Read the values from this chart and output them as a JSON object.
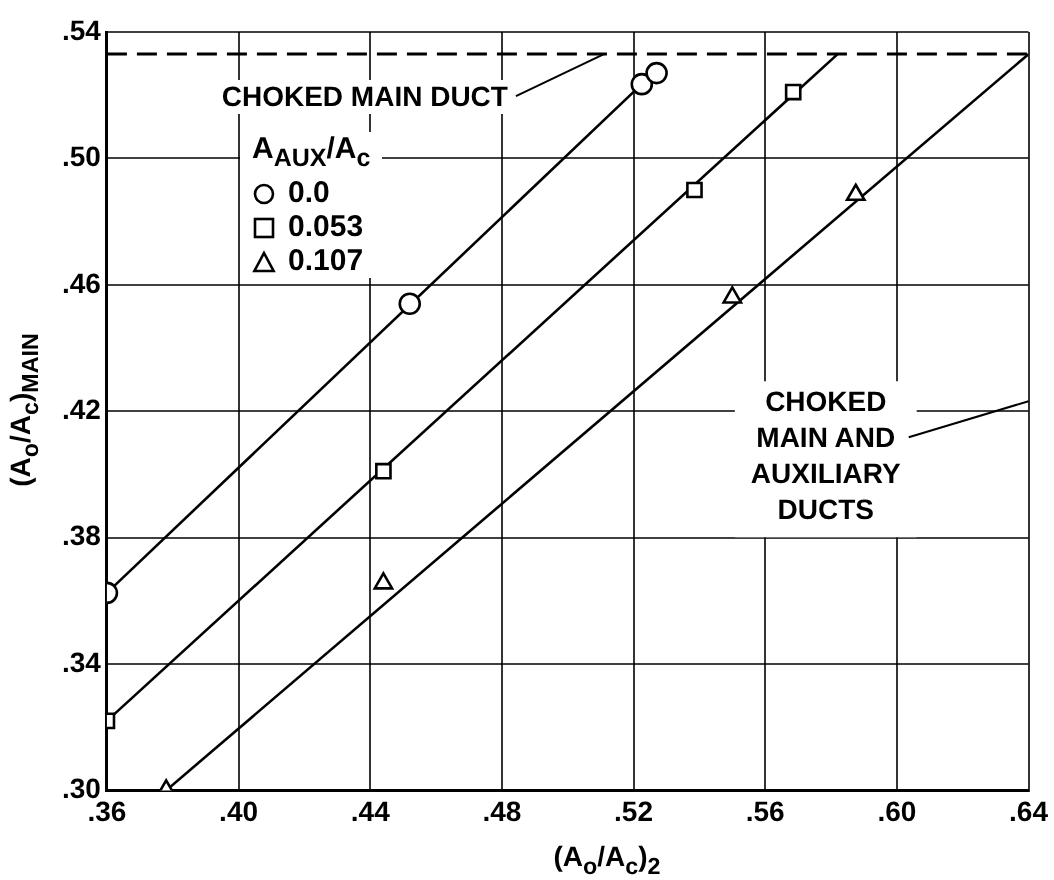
{
  "chart_data": {
    "type": "scatter",
    "xlabel": "(A$_{o}$/A$_{c}$)$_{2}$",
    "ylabel": "(A$_{o}$/A$_{c}$)$_{MAIN}$",
    "legend_title": "A$_{AUX}$/A$_{c}$",
    "legend": "top left",
    "grid": true,
    "xlim": [
      0.36,
      0.64
    ],
    "xticks": [
      {
        "value": 0.36,
        "label": ".36"
      },
      {
        "value": 0.4,
        "label": ".40"
      },
      {
        "value": 0.44,
        "label": ".44"
      },
      {
        "value": 0.48,
        "label": ".48"
      },
      {
        "value": 0.52,
        "label": ".52"
      },
      {
        "value": 0.56,
        "label": ".56"
      },
      {
        "value": 0.6,
        "label": ".60"
      },
      {
        "value": 0.64,
        "label": ".64"
      }
    ],
    "ylim": [
      0.3,
      0.54
    ],
    "yticks": [
      {
        "value": 0.3,
        "label": ".30"
      },
      {
        "value": 0.34,
        "label": ".34"
      },
      {
        "value": 0.38,
        "label": ".38"
      },
      {
        "value": 0.42,
        "label": ".42"
      },
      {
        "value": 0.46,
        "label": ".46"
      },
      {
        "value": 0.5,
        "label": ".50"
      },
      {
        "value": 0.54,
        "label": ".54"
      }
    ],
    "series": [
      {
        "name": "0.0",
        "marker": "circle",
        "color": "#000000",
        "x": [
          0.36,
          0.452,
          0.5225,
          0.527
        ],
        "values": [
          0.3625,
          0.454,
          0.5235,
          0.527
        ]
      },
      {
        "name": "0.053",
        "marker": "square",
        "color": "#000000",
        "x": [
          0.36,
          0.444,
          0.5385,
          0.5685
        ],
        "values": [
          0.322,
          0.401,
          0.49,
          0.521
        ]
      },
      {
        "name": "0.107",
        "marker": "triangle",
        "color": "#000000",
        "x": [
          0.378,
          0.444,
          0.55,
          0.5875
        ],
        "values": [
          0.3,
          0.3655,
          0.456,
          0.4885
        ]
      },
      {
        "type": "line",
        "color": "#000000",
        "x": [
          0.36,
          0.5225
        ],
        "values": [
          0.3625,
          0.5235
        ]
      },
      {
        "type": "line",
        "color": "#000000",
        "x": [
          0.36,
          0.582
        ],
        "values": [
          0.322,
          0.533
        ]
      },
      {
        "type": "line",
        "color": "#000000",
        "x": [
          0.378,
          0.64
        ],
        "values": [
          0.3,
          0.533
        ]
      }
    ],
    "ref_lines": [
      {
        "axis": "y",
        "value": 0.533,
        "line_style": "dashed",
        "color": "#000000"
      }
    ],
    "annotations": [
      {
        "text": "CHOKED MAIN DUCT",
        "x": 0.511,
        "y": 0.533
      },
      "CHOKED MAIN AND AUXILIARY DUCTS"
    ]
  }
}
